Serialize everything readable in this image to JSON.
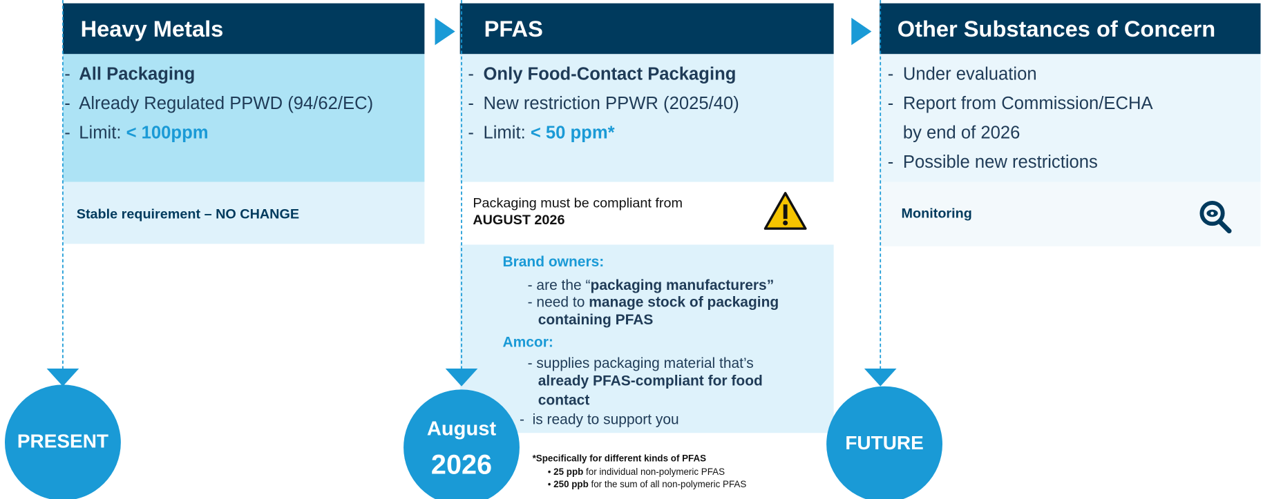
{
  "bullet": "-",
  "columns": [
    {
      "title": "Heavy Metals",
      "items": [
        [
          {
            "text": "All Packaging",
            "bold": true
          }
        ],
        [
          {
            "text": "Already Regulated PPWD (94/62/EC)"
          }
        ],
        [
          {
            "text": "Limit: "
          },
          {
            "text": "< 100ppm",
            "bold": true,
            "highlight": true
          }
        ]
      ],
      "status": [
        "Stable requirement – NO CHANGE"
      ],
      "milestone": [
        "PRESENT"
      ]
    },
    {
      "title": "PFAS",
      "items": [
        [
          {
            "text": "Only Food-Contact Packaging",
            "bold": true
          }
        ],
        [
          {
            "text": "New restriction PPWR (2025/40)"
          }
        ],
        [
          {
            "text": "Limit: "
          },
          {
            "text": "< 50 ppm*",
            "bold": true,
            "highlight": true
          }
        ]
      ],
      "status": [
        "Packaging must be compliant from",
        "AUGUST 2026"
      ],
      "milestone": [
        "August",
        "2026"
      ],
      "details": [
        [
          {
            "text": "Brand owners:",
            "bold": true,
            "highlight": true
          }
        ],
        [
          {
            "text": "- are the “"
          },
          {
            "text": "packaging manufacturers”",
            "bold": true
          }
        ],
        [
          {
            "text": "- need to "
          },
          {
            "text": "manage stock of packaging",
            "bold": true
          }
        ],
        [
          {
            "text": "containing PFAS",
            "bold": true
          }
        ],
        [
          {
            "text": "Amcor:",
            "bold": true,
            "highlight": true
          }
        ],
        [
          {
            "text": "- supplies packaging material that’s"
          }
        ],
        [
          {
            "text": "already PFAS-compliant for food",
            "bold": true
          }
        ],
        [
          {
            "text": "contact",
            "bold": true
          }
        ],
        [
          {
            "text": "-  is ready to support you"
          }
        ]
      ],
      "footnote": [
        [
          {
            "text": "*Specifically for different kinds of PFAS",
            "bold": true
          }
        ],
        [
          {
            "text": "• "
          },
          {
            "text": "25 ppb",
            "bold": true
          },
          {
            "text": " for individual non-polymeric PFAS"
          }
        ],
        [
          {
            "text": "• "
          },
          {
            "text": "250 ppb",
            "bold": true
          },
          {
            "text": " for the sum of all non-polymeric PFAS"
          }
        ]
      ]
    },
    {
      "title": "Other Substances of Concern",
      "items": [
        [
          {
            "text": "Under evaluation"
          }
        ],
        [
          {
            "text": "Report from Commission/ECHA"
          }
        ],
        [
          {
            "text": "by end of 2026"
          }
        ],
        [
          {
            "text": "Possible new restrictions"
          }
        ]
      ],
      "status": [
        "Monitoring"
      ],
      "milestone": [
        "FUTURE"
      ]
    }
  ]
}
